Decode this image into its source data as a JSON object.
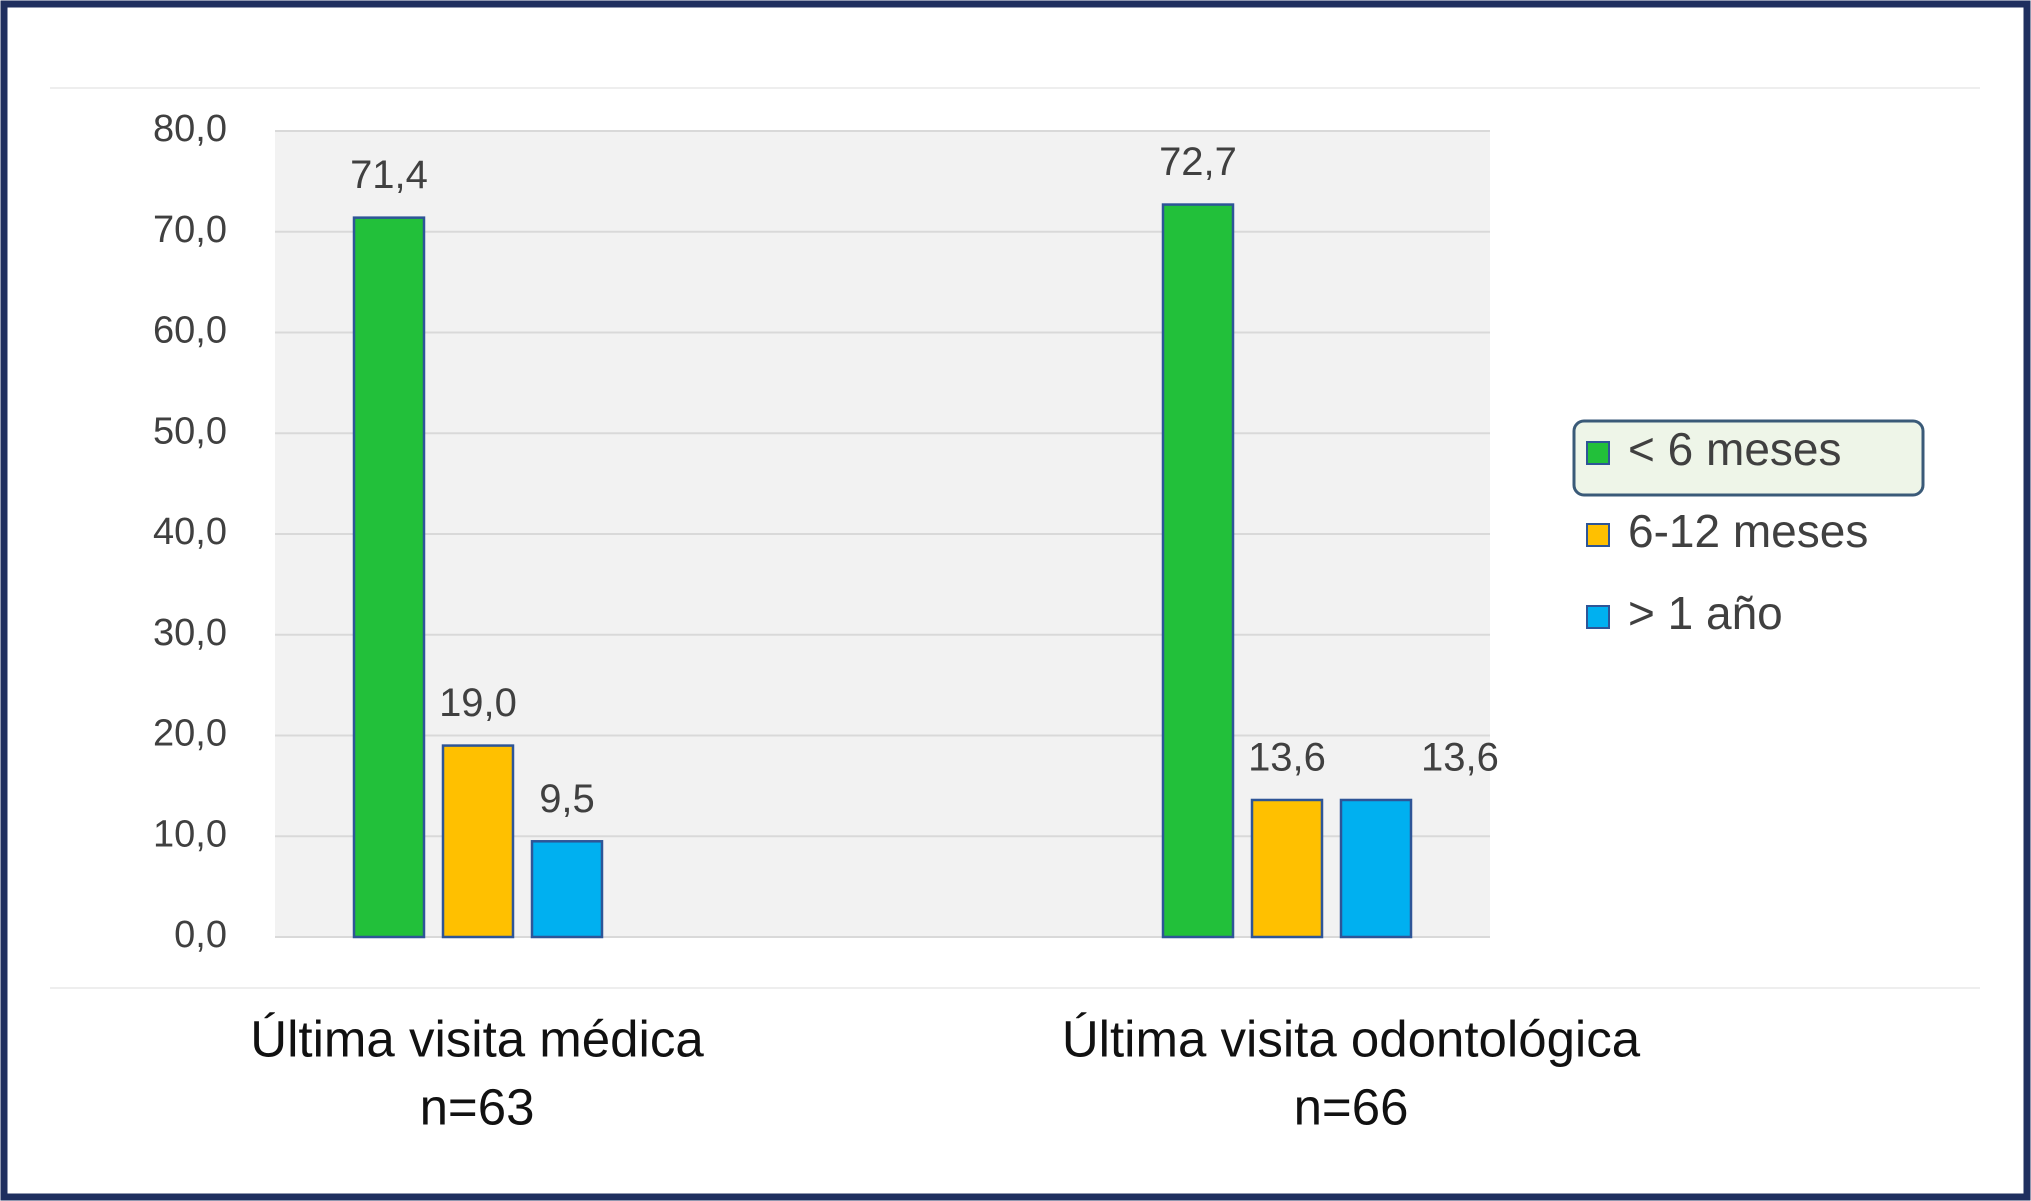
{
  "chart_data": {
    "type": "bar",
    "categories": [
      "Última visita médica",
      "Última visita odontológica"
    ],
    "category_notes": [
      "n=63",
      "n=66"
    ],
    "series": [
      {
        "name": "< 6 meses",
        "color": "#22c03a",
        "values": [
          71.4,
          72.7
        ],
        "value_labels": [
          "71,4",
          "72,7"
        ]
      },
      {
        "name": "6-12 meses",
        "color": "#ffc000",
        "values": [
          19.0,
          13.6
        ],
        "value_labels": [
          "19,0",
          "13,6"
        ]
      },
      {
        "name": "> 1 año",
        "color": "#00b0f0",
        "values": [
          9.5,
          13.6
        ],
        "value_labels": [
          "9,5",
          "13,6"
        ]
      }
    ],
    "ylim": [
      0,
      80
    ],
    "yticks": [
      {
        "value": 0,
        "label": "0,0"
      },
      {
        "value": 10,
        "label": "10,0"
      },
      {
        "value": 20,
        "label": "20,0"
      },
      {
        "value": 30,
        "label": "30,0"
      },
      {
        "value": 40,
        "label": "40,0"
      },
      {
        "value": 50,
        "label": "50,0"
      },
      {
        "value": 60,
        "label": "60,0"
      },
      {
        "value": 70,
        "label": "70,0"
      },
      {
        "value": 80,
        "label": "80,0"
      }
    ],
    "grid": true,
    "legend": "right"
  }
}
